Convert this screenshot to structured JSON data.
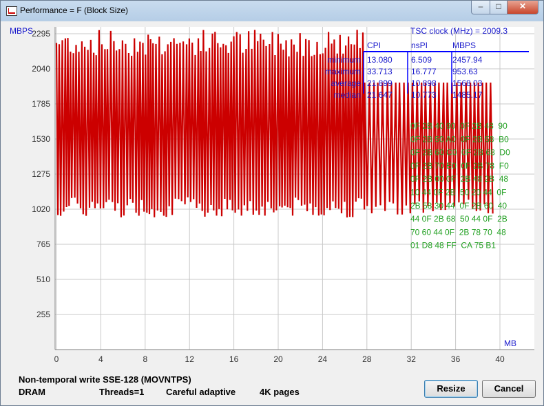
{
  "window": {
    "title": "Performance = F (Block Size)",
    "min_glyph": "–",
    "max_glyph": "□",
    "close_glyph": "✕"
  },
  "chart_data": {
    "type": "line",
    "ylabel": "MBPS",
    "xlabel": "MB",
    "ylim": [
      0,
      2550
    ],
    "xlim": [
      0,
      40
    ],
    "y_ticks": [
      255,
      510,
      765,
      1020,
      1275,
      1530,
      1785,
      2040,
      2295
    ],
    "x_ticks": [
      0,
      4,
      8,
      12,
      16,
      20,
      24,
      28,
      32,
      36,
      40
    ],
    "grid": true,
    "series": [
      {
        "color": "#cc0000",
        "segments": [
          {
            "x_start": 0,
            "x_end": 27.8,
            "approx_step_mb": 0.13,
            "high_range": [
              2130,
              2330
            ],
            "low_range": [
              960,
              1110
            ]
          },
          {
            "x_start": 27.8,
            "x_end": 39.4,
            "approx_step_mb": 0.2,
            "high_range": [
              1940,
              1940
            ],
            "low_range": [
              980,
              1090
            ]
          }
        ],
        "values_note": ""
      }
    ],
    "stats_table": {
      "clock_label": "TSC clock (MHz)  = 2009.3",
      "columns": [
        "CPI",
        "nsPI",
        "MBPS"
      ],
      "rows": [
        {
          "label": "minimum",
          "values": [
            "13.080",
            "6.509",
            "2457.94"
          ]
        },
        {
          "label": "maximum",
          "values": [
            "33.713",
            "16.777",
            "953.63"
          ]
        },
        {
          "label": "average",
          "values": [
            "21.899",
            "10.898",
            "1568.03"
          ]
        },
        {
          "label": "median",
          "values": [
            "21.647",
            "10.773",
            "1485.17"
          ]
        }
      ],
      "header_color": "#1a1acc",
      "underline_color": "#0000ff"
    },
    "hex_dump": {
      "color": "#22a022",
      "lines": [
        "0F 2B 40 90  0F 2B 48  90",
        "0F 2B 50 A0  0F 2B 58  B0",
        "0F 2B 60 C0  0F 2B 68  D0",
        "0F 2B 70 E0  0F 2B 78  F0",
        "0F 2B 00 0F  2B 48 2B  48",
        "10 44 0F 2B  50 20 44  0F",
        "2B 58 30 44  0F 2B 60  40",
        "44 0F 2B 68  50 44 0F  2B",
        "70 60 44 0F  2B 78 70  48",
        "01 D8 48 FF  CA 75 B1"
      ]
    }
  },
  "status": {
    "line1": "Non-temporal write SSE-128 (MOVNTPS)",
    "memory": "DRAM",
    "threads": "Threads=1",
    "mode": "Careful adaptive",
    "pages": "4K pages"
  },
  "buttons": {
    "resize": "Resize",
    "cancel": "Cancel"
  }
}
